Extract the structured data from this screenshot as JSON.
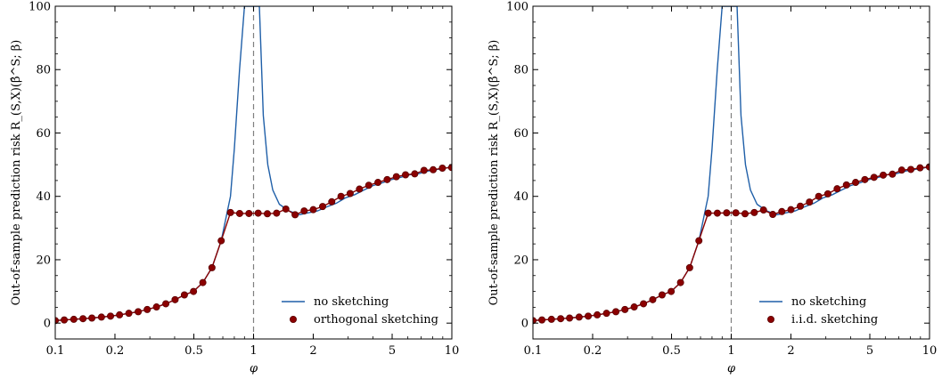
{
  "figure": {
    "colors": {
      "no_sketching": "#1f5fa8",
      "sketching": "#8b0000",
      "marker_edge": "#5a0000",
      "vline": "#808080"
    }
  },
  "chart_data": [
    {
      "type": "line",
      "xscale": "log",
      "xlim": [
        0.1,
        10
      ],
      "ylim": [
        -5,
        100
      ],
      "xlabel": "φ",
      "ylabel": "Out-of-sample prediction risk R_(S,X)(β̂^S; β)",
      "xticks": [
        0.1,
        0.2,
        0.5,
        1,
        2,
        5,
        10
      ],
      "xtick_labels": [
        "0.1",
        "0.2",
        "0.5",
        "1",
        "2",
        "5",
        "10"
      ],
      "yticks": [
        0,
        20,
        40,
        60,
        80,
        100
      ],
      "ytick_labels": [
        "0",
        "20",
        "40",
        "60",
        "80",
        "100"
      ],
      "vline_x": 1,
      "legend": "bottom-right",
      "grid": false,
      "series": [
        {
          "name": "no sketching",
          "kind": "line",
          "x": [
            0.1,
            0.111,
            0.124,
            0.138,
            0.153,
            0.171,
            0.19,
            0.211,
            0.235,
            0.262,
            0.291,
            0.324,
            0.361,
            0.402,
            0.448,
            0.498,
            0.555,
            0.617,
            0.687,
            0.765,
            0.8,
            0.85,
            0.9,
            0.93,
            0.96,
            1.04,
            1.07,
            1.12,
            1.18,
            1.25,
            1.35,
            1.5,
            1.7,
            1.89,
            2.1,
            2.34,
            2.61,
            2.9,
            3.23,
            3.6,
            4.0,
            4.46,
            4.96,
            5.52,
            6.14,
            6.84,
            7.61,
            8.47,
            9.43,
            10.0
          ],
          "y": [
            0.8,
            1.0,
            1.2,
            1.4,
            1.6,
            1.9,
            2.2,
            2.6,
            3.1,
            3.6,
            4.3,
            5.1,
            6.1,
            7.4,
            8.9,
            10.0,
            12.8,
            17.5,
            26.0,
            40.0,
            55.0,
            80.0,
            100.0,
            100.0,
            100.0,
            100.0,
            100.0,
            65.5,
            50.0,
            42.0,
            37.5,
            35.5,
            34.2,
            34.8,
            35.4,
            36.7,
            37.8,
            39.5,
            40.5,
            42.0,
            43.4,
            44.3,
            45.3,
            46.0,
            46.8,
            47.2,
            48.0,
            48.5,
            49.0,
            49.5
          ]
        },
        {
          "name": "orthogonal sketching",
          "kind": "markers",
          "x": [
            0.1,
            0.111,
            0.124,
            0.138,
            0.153,
            0.171,
            0.19,
            0.211,
            0.235,
            0.262,
            0.291,
            0.324,
            0.361,
            0.402,
            0.448,
            0.498,
            0.555,
            0.617,
            0.687,
            0.765,
            0.851,
            0.948,
            1.055,
            1.174,
            1.307,
            1.455,
            1.62,
            1.8,
            2.0,
            2.23,
            2.48,
            2.76,
            3.07,
            3.42,
            3.81,
            4.24,
            4.72,
            5.25,
            5.84,
            6.5,
            7.24,
            8.05,
            8.96,
            9.98
          ],
          "y": [
            0.8,
            1.0,
            1.2,
            1.4,
            1.6,
            1.9,
            2.2,
            2.6,
            3.1,
            3.6,
            4.3,
            5.1,
            6.1,
            7.4,
            8.9,
            10.0,
            12.8,
            17.5,
            26.0,
            34.9,
            34.6,
            34.6,
            34.7,
            34.5,
            34.7,
            36.0,
            34.2,
            35.4,
            35.8,
            36.8,
            38.3,
            40.0,
            40.9,
            42.3,
            43.5,
            44.4,
            45.3,
            46.2,
            46.8,
            47.1,
            48.2,
            48.4,
            48.9,
            49.1
          ]
        }
      ]
    },
    {
      "type": "line",
      "xscale": "log",
      "xlim": [
        0.1,
        10
      ],
      "ylim": [
        -5,
        100
      ],
      "xlabel": "φ",
      "ylabel": "Out-of-sample prediction risk R_(S,X)(β̂^S; β)",
      "xticks": [
        0.1,
        0.2,
        0.5,
        1,
        2,
        5,
        10
      ],
      "xtick_labels": [
        "0.1",
        "0.2",
        "0.5",
        "1",
        "2",
        "5",
        "10"
      ],
      "yticks": [
        0,
        20,
        40,
        60,
        80,
        100
      ],
      "ytick_labels": [
        "0",
        "20",
        "40",
        "60",
        "80",
        "100"
      ],
      "vline_x": 1,
      "legend": "bottom-right",
      "grid": false,
      "series": [
        {
          "name": "no sketching",
          "kind": "line",
          "x": [
            0.1,
            0.111,
            0.124,
            0.138,
            0.153,
            0.171,
            0.19,
            0.211,
            0.235,
            0.262,
            0.291,
            0.324,
            0.361,
            0.402,
            0.448,
            0.498,
            0.555,
            0.617,
            0.687,
            0.765,
            0.8,
            0.85,
            0.9,
            0.93,
            0.96,
            1.04,
            1.07,
            1.12,
            1.18,
            1.25,
            1.35,
            1.5,
            1.7,
            1.89,
            2.1,
            2.34,
            2.61,
            2.9,
            3.23,
            3.6,
            4.0,
            4.46,
            4.96,
            5.52,
            6.14,
            6.84,
            7.61,
            8.47,
            9.43,
            10.0
          ],
          "y": [
            0.8,
            1.0,
            1.2,
            1.4,
            1.6,
            1.9,
            2.2,
            2.6,
            3.1,
            3.6,
            4.3,
            5.1,
            6.1,
            7.4,
            8.9,
            10.0,
            12.8,
            17.5,
            26.0,
            40.0,
            55.0,
            80.0,
            100.0,
            100.0,
            100.0,
            100.0,
            100.0,
            65.5,
            50.0,
            42.0,
            37.5,
            35.5,
            34.2,
            34.8,
            35.4,
            36.7,
            37.8,
            39.5,
            40.5,
            42.0,
            43.4,
            44.3,
            45.3,
            46.0,
            46.8,
            47.2,
            48.0,
            48.5,
            49.0,
            49.5
          ]
        },
        {
          "name": "i.i.d. sketching",
          "kind": "markers",
          "x": [
            0.1,
            0.111,
            0.124,
            0.138,
            0.153,
            0.171,
            0.19,
            0.211,
            0.235,
            0.262,
            0.291,
            0.324,
            0.361,
            0.402,
            0.448,
            0.498,
            0.555,
            0.617,
            0.687,
            0.765,
            0.851,
            0.948,
            1.055,
            1.174,
            1.307,
            1.455,
            1.62,
            1.8,
            2.0,
            2.23,
            2.48,
            2.76,
            3.07,
            3.42,
            3.81,
            4.24,
            4.72,
            5.25,
            5.84,
            6.5,
            7.24,
            8.05,
            8.96,
            9.98
          ],
          "y": [
            0.8,
            1.0,
            1.2,
            1.4,
            1.6,
            1.9,
            2.2,
            2.6,
            3.1,
            3.6,
            4.3,
            5.1,
            6.1,
            7.4,
            8.9,
            10.0,
            12.8,
            17.5,
            26.0,
            34.7,
            34.7,
            34.8,
            34.8,
            34.5,
            34.9,
            35.7,
            34.3,
            35.2,
            35.8,
            36.9,
            38.2,
            40.0,
            40.8,
            42.4,
            43.6,
            44.4,
            45.3,
            46.0,
            46.7,
            47.0,
            48.3,
            48.5,
            49.0,
            49.3
          ]
        }
      ]
    }
  ]
}
